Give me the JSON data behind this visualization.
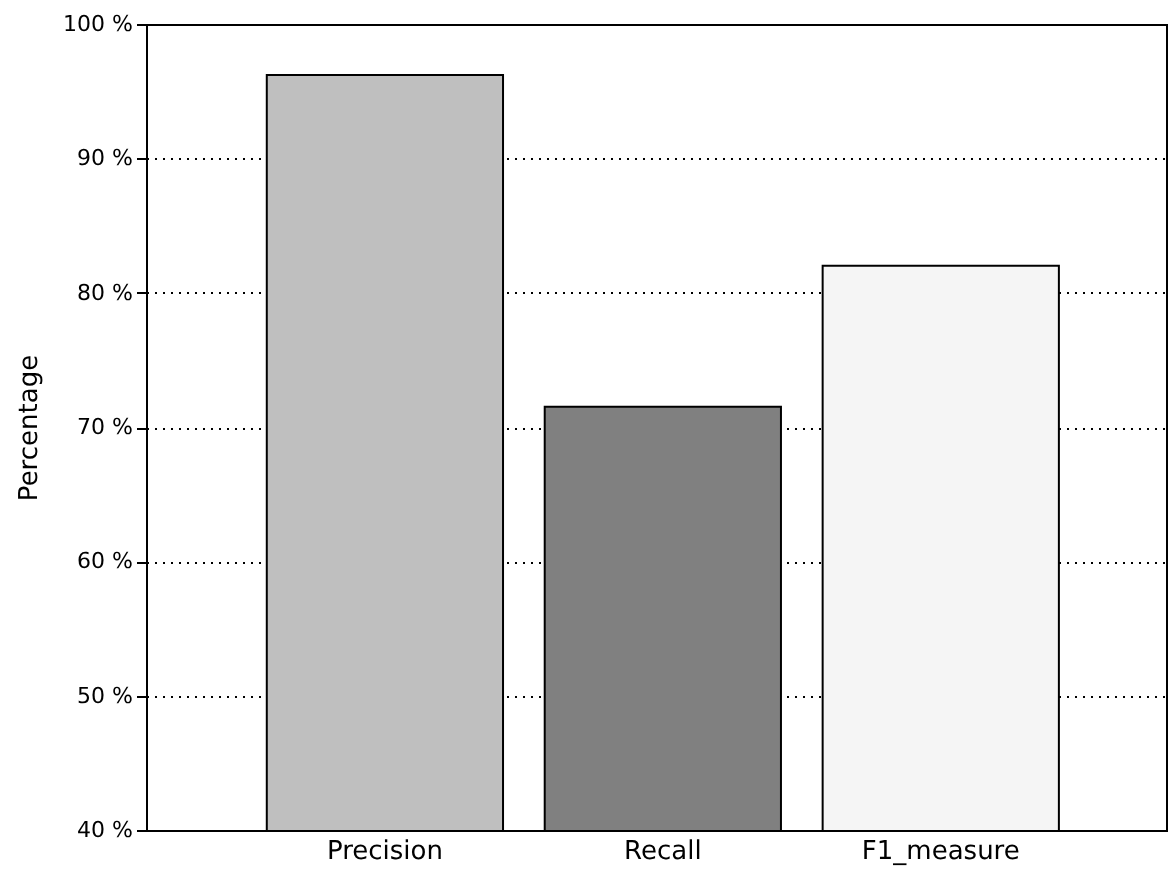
{
  "chart_data": {
    "type": "bar",
    "ylabel": "Percentage",
    "categories": [
      "Precision",
      "Recall",
      "F1_measure"
    ],
    "values": [
      96.2,
      71.5,
      82.0
    ],
    "colors": [
      "#bfbfbf",
      "#808080",
      "#f5f5f5"
    ],
    "ylim": [
      40,
      100
    ],
    "yticks": [
      {
        "value": 40,
        "label": "40 %"
      },
      {
        "value": 50,
        "label": "50 %"
      },
      {
        "value": 60,
        "label": "60 %"
      },
      {
        "value": 70,
        "label": "70 %"
      },
      {
        "value": 80,
        "label": "80 %"
      },
      {
        "value": 90,
        "label": "90 %"
      },
      {
        "value": 100,
        "label": "100 %"
      }
    ],
    "grid": "y"
  }
}
